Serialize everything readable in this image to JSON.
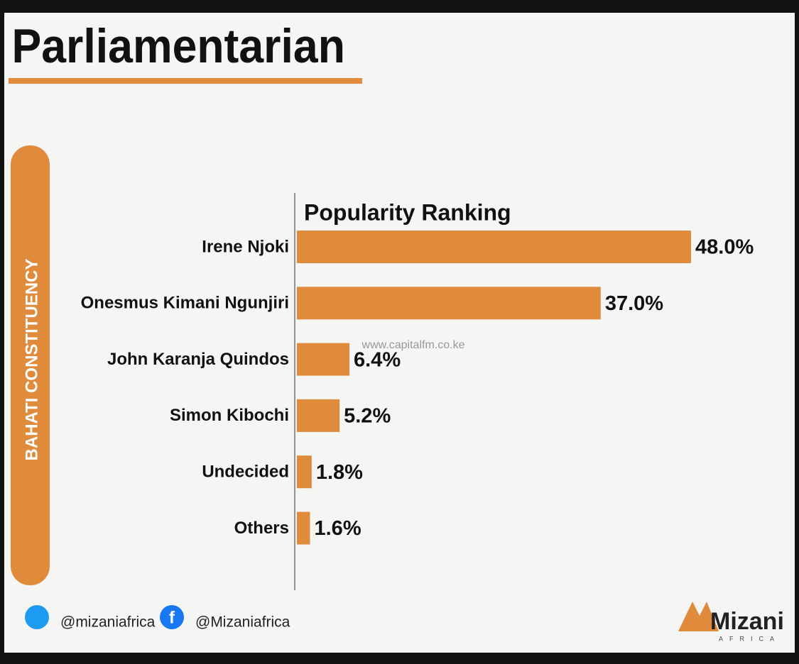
{
  "chart_data": {
    "type": "bar",
    "orientation": "horizontal",
    "title": "Parliamentarian",
    "side_label": "BAHATI CONSTITUENCY",
    "subtitle": "Popularity Ranking",
    "categories": [
      "Irene Njoki",
      "Onesmus Kimani Ngunjiri",
      "John Karanja Quindos",
      "Simon Kibochi",
      "Undecided",
      "Others"
    ],
    "values": [
      48.0,
      37.0,
      6.4,
      5.2,
      1.8,
      1.6
    ],
    "value_labels": [
      "48.0%",
      "37.0%",
      "6.4%",
      "5.2%",
      "1.8%",
      "1.6%"
    ],
    "color": "#e08a3c",
    "watermark": "www.capitalfm.co.ke",
    "footer": {
      "twitter": "@mizaniafrica",
      "facebook": "@Mizaniafrica",
      "logo": "Mizani",
      "logo_sub": "AFRICA"
    }
  }
}
